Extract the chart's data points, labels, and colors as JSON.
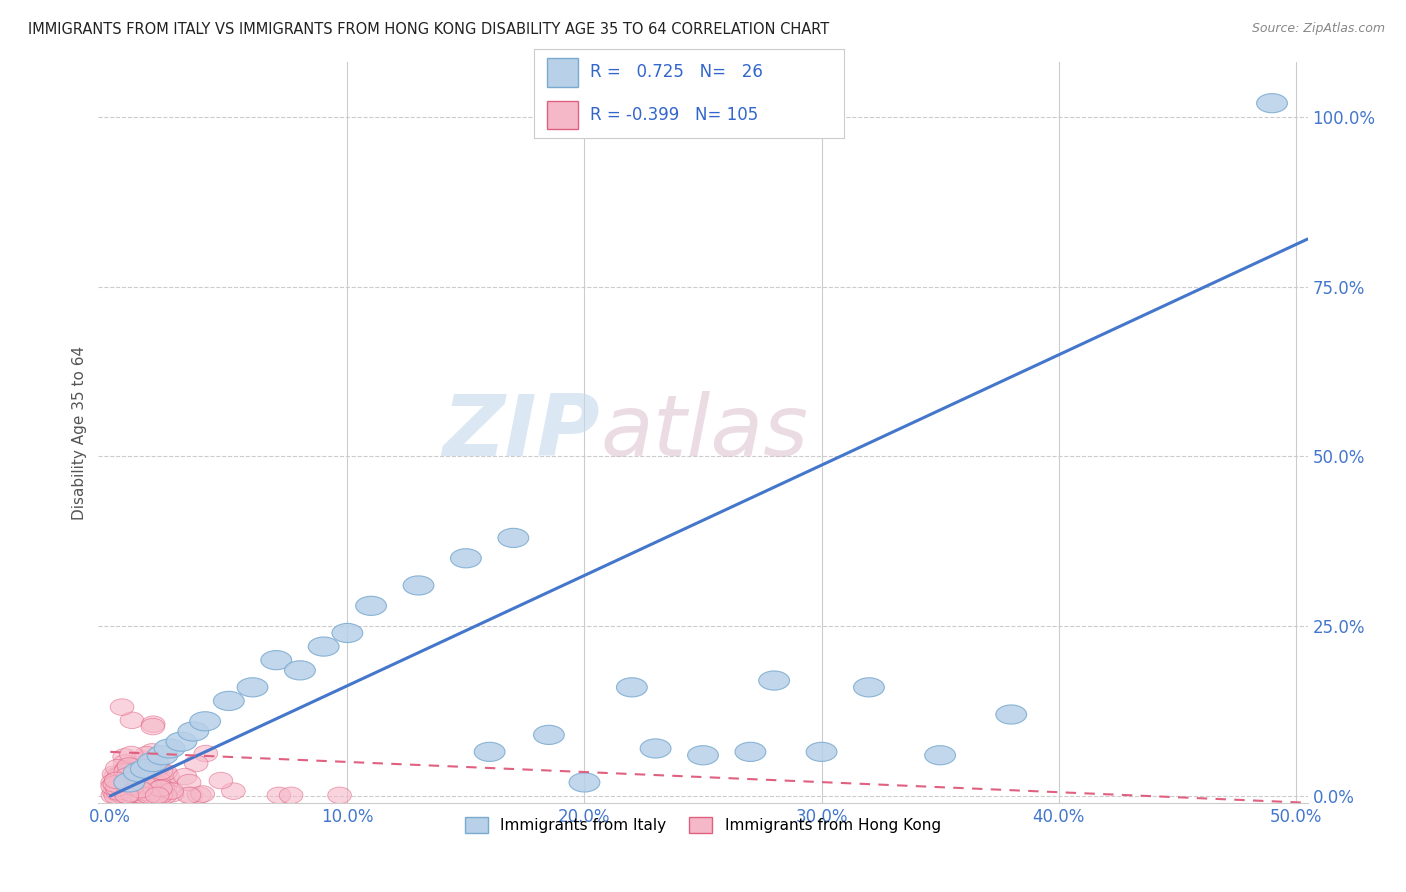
{
  "title": "IMMIGRANTS FROM ITALY VS IMMIGRANTS FROM HONG KONG DISABILITY AGE 35 TO 64 CORRELATION CHART",
  "source": "Source: ZipAtlas.com",
  "xlabel_ticks": [
    "0.0%",
    "10.0%",
    "20.0%",
    "30.0%",
    "40.0%",
    "50.0%"
  ],
  "ylabel_ticks": [
    "0.0%",
    "25.0%",
    "50.0%",
    "75.0%",
    "100.0%"
  ],
  "xlim": [
    -0.005,
    0.505
  ],
  "ylim": [
    -0.01,
    1.08
  ],
  "italy_R": 0.725,
  "italy_N": 26,
  "hk_R": -0.399,
  "hk_N": 105,
  "italy_color": "#b8d0e8",
  "italy_edge": "#7aaad0",
  "hk_color": "#f5b8c8",
  "hk_edge": "#e06080",
  "italy_line_color": "#4477cc",
  "hk_line_color": "#e06080",
  "italy_scatter_x": [
    0.008,
    0.012,
    0.015,
    0.018,
    0.022,
    0.025,
    0.03,
    0.035,
    0.04,
    0.05,
    0.06,
    0.07,
    0.08,
    0.09,
    0.1,
    0.11,
    0.13,
    0.15,
    0.17,
    0.2,
    0.22,
    0.25,
    0.28,
    0.32,
    0.38,
    0.49
  ],
  "italy_scatter_y": [
    0.02,
    0.035,
    0.04,
    0.05,
    0.06,
    0.07,
    0.08,
    0.095,
    0.11,
    0.14,
    0.16,
    0.2,
    0.185,
    0.22,
    0.24,
    0.28,
    0.31,
    0.35,
    0.38,
    0.02,
    0.16,
    0.06,
    0.17,
    0.16,
    0.12,
    1.02
  ],
  "italy_line_x0": 0.0,
  "italy_line_y0": 0.0,
  "italy_line_x1": 0.505,
  "italy_line_y1": 0.82,
  "hk_line_x0": 0.0,
  "hk_line_y0": 0.065,
  "hk_line_x1": 0.505,
  "hk_line_y1": -0.01
}
